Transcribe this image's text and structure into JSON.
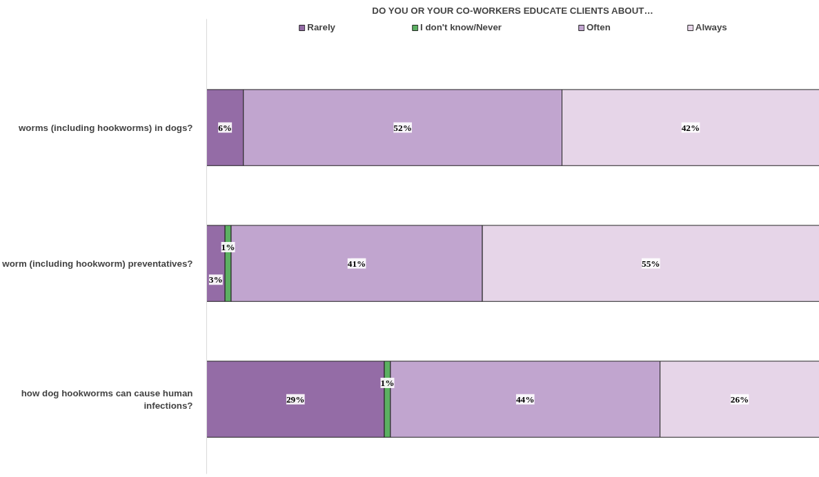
{
  "chart_data": {
    "type": "bar",
    "orientation": "horizontal",
    "stacked": true,
    "title": "DO YOU OR YOUR CO-WORKERS EDUCATE CLIENTS ABOUT…",
    "categories": [
      "worms (including hookworms) in dogs?",
      "worm (including hookworm) preventatives?",
      "how dog hookworms can cause human infections?"
    ],
    "series": [
      {
        "name": "Rarely",
        "color": "#946ca6",
        "values": [
          6,
          3,
          29
        ],
        "value_labels": [
          "6%",
          "3%",
          "29%"
        ]
      },
      {
        "name": "I don't know/Never",
        "color": "#5cb062",
        "values": [
          null,
          1,
          1
        ],
        "value_labels": [
          null,
          "1%",
          "1%"
        ]
      },
      {
        "name": "Often",
        "color": "#c1a5cf",
        "values": [
          52,
          41,
          44
        ],
        "value_labels": [
          "52%",
          "41%",
          "44%"
        ]
      },
      {
        "name": "Always",
        "color": "#e6d5e8",
        "values": [
          42,
          55,
          26
        ],
        "value_labels": [
          "42%",
          "55%",
          "26%"
        ]
      }
    ],
    "xlim": [
      0,
      100
    ],
    "grid": false,
    "legend": "top",
    "tick_labels": "y"
  }
}
